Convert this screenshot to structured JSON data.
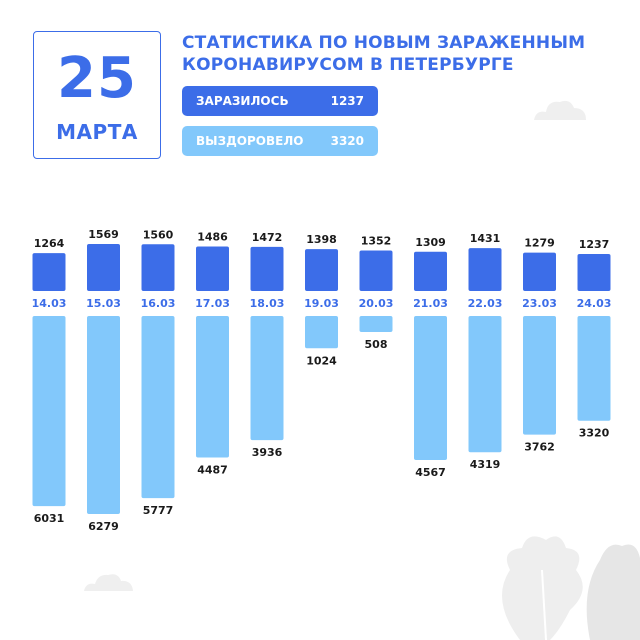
{
  "header": {
    "day": "25",
    "month": "МАРТА",
    "title_line1": "СТАТИСТИКА ПО НОВЫМ ЗАРАЖЕННЫМ",
    "title_line2": "КОРОНАВИРУСОМ В ПЕТЕРБУРГЕ"
  },
  "legend": {
    "infected_label": "ЗАРАЗИЛОСЬ",
    "infected_value": "1237",
    "recovered_label": "ВЫЗДОРОВЕЛО",
    "recovered_value": "3320"
  },
  "colors": {
    "infected": "#3c6de8",
    "recovered": "#82c8fb",
    "text": "#1a1a1a"
  },
  "chart_data": {
    "type": "bar",
    "categories": [
      "14.03",
      "15.03",
      "16.03",
      "17.03",
      "18.03",
      "19.03",
      "20.03",
      "21.03",
      "22.03",
      "23.03",
      "24.03"
    ],
    "series": [
      {
        "name": "ЗАРАЗИЛОСЬ",
        "values": [
          1264,
          1569,
          1560,
          1486,
          1472,
          1398,
          1352,
          1309,
          1431,
          1279,
          1237
        ]
      },
      {
        "name": "ВЫЗДОРОВЕЛО",
        "values": [
          6031,
          6279,
          5777,
          4487,
          3936,
          1024,
          508,
          4567,
          4319,
          3762,
          3320
        ]
      }
    ],
    "grid": false
  }
}
